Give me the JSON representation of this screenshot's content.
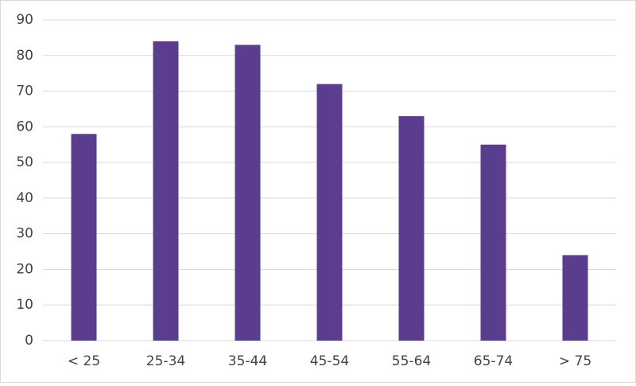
{
  "chart_data": {
    "type": "bar",
    "categories": [
      "< 25",
      "25-34",
      "35-44",
      "45-54",
      "55-64",
      "65-74",
      "> 75"
    ],
    "values": [
      58,
      84,
      83,
      72,
      63,
      55,
      24
    ],
    "color": "#5a3d8f",
    "ylim": [
      0,
      90
    ],
    "yticks": [
      0,
      10,
      20,
      30,
      40,
      50,
      60,
      70,
      80,
      90
    ],
    "grid": true
  }
}
